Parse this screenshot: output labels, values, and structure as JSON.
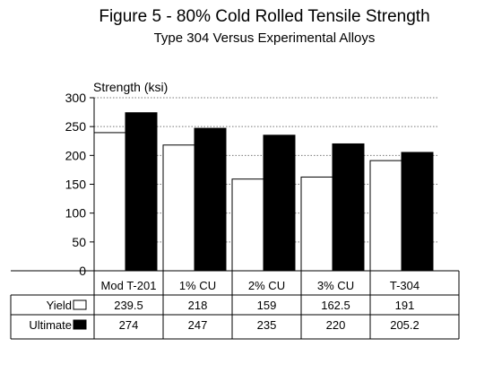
{
  "chart_data": {
    "type": "bar",
    "title": "Figure 5 - 80% Cold Rolled Tensile Strength",
    "subtitle": "Type 304 Versus Experimental Alloys",
    "ylabel": "Strength (ksi)",
    "xlabel": "",
    "ylim": [
      0,
      300
    ],
    "yticks": [
      0,
      50,
      100,
      150,
      200,
      250,
      300
    ],
    "grid": true,
    "legend": "data-table-left",
    "categories": [
      "Mod T-201",
      "1% CU",
      "2% CU",
      "3% CU",
      "T-304"
    ],
    "series": [
      {
        "name": "Yield",
        "values": [
          239.5,
          218,
          159,
          162.5,
          191
        ],
        "color": "#ffffff"
      },
      {
        "name": "Ultimate",
        "values": [
          274,
          247,
          235,
          220,
          205.2
        ],
        "color": "#000000"
      }
    ],
    "table_labels": {
      "series": [
        [
          "239.5",
          "218",
          "159",
          "162.5",
          "191"
        ],
        [
          "274",
          "247",
          "235",
          "220",
          "205.2"
        ]
      ]
    }
  }
}
